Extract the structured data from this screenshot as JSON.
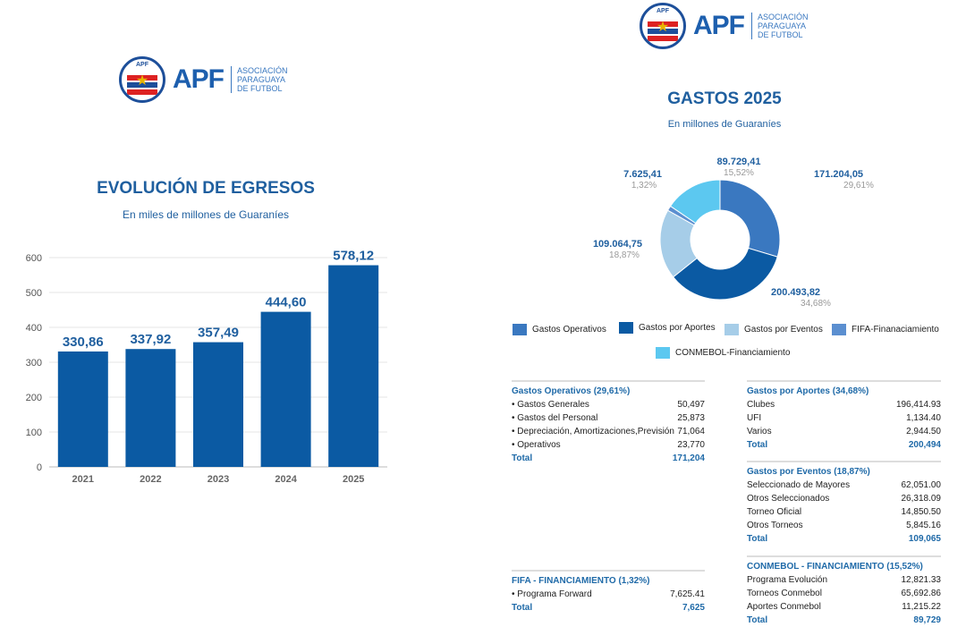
{
  "logo": {
    "seal_text": "APF",
    "name": "APF",
    "sub": [
      "ASOCIACIÓN",
      "PARAGUAYA",
      "DE FUTBOL"
    ]
  },
  "left": {
    "title": "EVOLUCIÓN DE EGRESOS",
    "subtitle": "En miles de millones de Guaraníes"
  },
  "right": {
    "title": "GASTOS 2025",
    "subtitle": "En millones de Guaraníes"
  },
  "chart_data": [
    {
      "type": "bar",
      "title": "EVOLUCIÓN DE EGRESOS",
      "subtitle": "En miles de millones de Guaraníes",
      "categories": [
        "2021",
        "2022",
        "2023",
        "2024",
        "2025"
      ],
      "values": [
        330.86,
        337.92,
        357.49,
        444.6,
        578.12
      ],
      "labels": [
        "330,86",
        "337,92",
        "357,49",
        "444,60",
        "578,12"
      ],
      "ylim": [
        0,
        600
      ],
      "yticks": [
        "0",
        "100",
        "200",
        "300",
        "400",
        "500",
        "600"
      ],
      "grid": true,
      "color": "#0b5aa3"
    },
    {
      "type": "pie",
      "title": "GASTOS 2025",
      "subtitle": "En millones de Guaraníes",
      "slices": [
        {
          "name": "Gastos Operativos",
          "value": 171204.05,
          "label": "171.204,05",
          "pct": "29,61%",
          "color": "#3a78c0"
        },
        {
          "name": "Gastos por Aportes",
          "value": 200493.82,
          "label": "200.493,82",
          "pct": "34,68%",
          "color": "#0b5aa3"
        },
        {
          "name": "Gastos por Eventos",
          "value": 109064.75,
          "label": "109.064,75",
          "pct": "18,87%",
          "color": "#a6cde8"
        },
        {
          "name": "FIFA-Finanaciamiento",
          "value": 7625.41,
          "label": "7.625,41",
          "pct": "1,32%",
          "color": "#5b8fd0"
        },
        {
          "name": "CONMEBOL-Financiamiento",
          "value": 89729.41,
          "label": "89.729,41",
          "pct": "15,52%",
          "color": "#5cc8f0"
        }
      ],
      "legend": "bottom"
    }
  ],
  "tables": [
    {
      "title": "Gastos Operativos (29,61%)",
      "rows": [
        [
          "• Gastos Generales",
          "50,497"
        ],
        [
          "• Gastos del Personal",
          "25,873"
        ],
        [
          "• Depreciación, Amortizaciones,Previsión",
          "71,064"
        ],
        [
          "• Operativos",
          "23,770"
        ]
      ],
      "total": [
        "Total",
        "171,204"
      ]
    },
    {
      "title": "FIFA - FINANCIAMIENTO (1,32%)",
      "rows": [
        [
          "• Programa Forward",
          "7,625.41"
        ]
      ],
      "total": [
        "Total",
        "7,625"
      ]
    },
    {
      "title": "Gastos por Aportes (34,68%)",
      "rows": [
        [
          "Clubes",
          "196,414.93"
        ],
        [
          "UFI",
          "1,134.40"
        ],
        [
          "Varios",
          "2,944.50"
        ]
      ],
      "total": [
        "Total",
        "200,494"
      ]
    },
    {
      "title": "Gastos por Eventos (18,87%)",
      "rows": [
        [
          "Seleccionado de Mayores",
          "62,051.00"
        ],
        [
          "Otros Seleccionados",
          "26,318.09"
        ],
        [
          "Torneo Oficial",
          "14,850.50"
        ],
        [
          "Otros Torneos",
          "5,845.16"
        ]
      ],
      "total": [
        "Total",
        "109,065"
      ]
    },
    {
      "title": "CONMEBOL  - FINANCIAMIENTO (15,52%)",
      "rows": [
        [
          "Programa Evolución",
          "12,821.33"
        ],
        [
          "Torneos Conmebol",
          "65,692.86"
        ],
        [
          "Aportes Conmebol",
          "11,215.22"
        ]
      ],
      "total": [
        "Total",
        "89,729"
      ]
    }
  ]
}
